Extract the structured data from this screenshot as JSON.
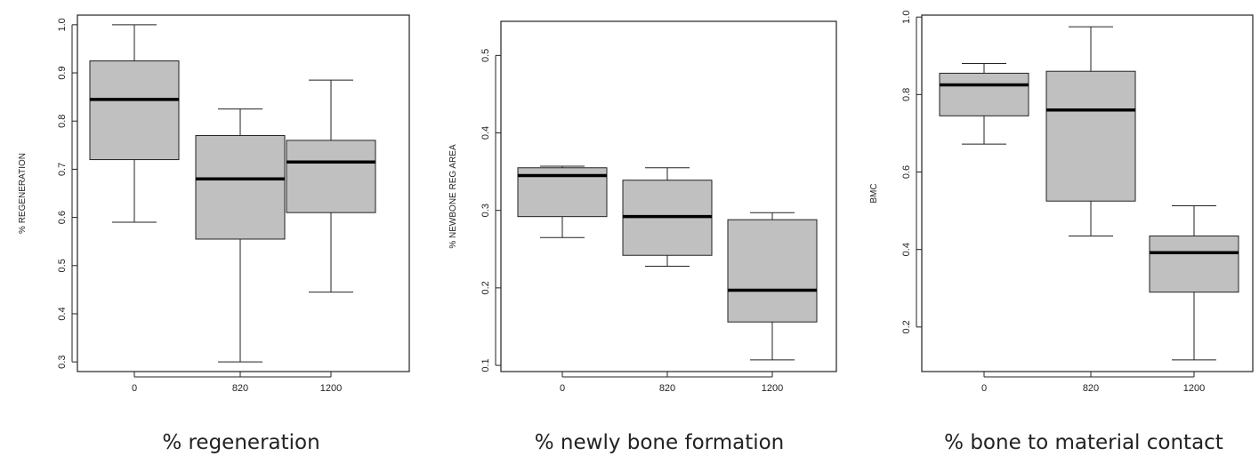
{
  "chart_data": [
    {
      "type": "boxplot",
      "caption": "% regeneration",
      "ylabel": "% REGENERATION",
      "categories": [
        "0",
        "820",
        "1200"
      ],
      "yticks": [
        "0.3",
        "0.4",
        "0.5",
        "0.6",
        "0.7",
        "0.8",
        "0.9",
        "1.0"
      ],
      "ylim": [
        0.28,
        1.02
      ],
      "boxes": [
        {
          "min": 0.59,
          "q1": 0.72,
          "median": 0.845,
          "q3": 0.925,
          "max": 1.0
        },
        {
          "min": 0.3,
          "q1": 0.555,
          "median": 0.68,
          "q3": 0.77,
          "max": 0.825
        },
        {
          "min": 0.445,
          "q1": 0.61,
          "median": 0.715,
          "q3": 0.76,
          "max": 0.885
        }
      ],
      "box_color": "#c0c0c0"
    },
    {
      "type": "boxplot",
      "caption": "% newly bone formation",
      "ylabel": "% NEWBONE REG AREA",
      "categories": [
        "0",
        "820",
        "1200"
      ],
      "yticks": [
        "0.1",
        "0.2",
        "0.3",
        "0.4",
        "0.5"
      ],
      "ylim": [
        0.092,
        0.544
      ],
      "boxes": [
        {
          "min": 0.265,
          "q1": 0.292,
          "median": 0.345,
          "q3": 0.355,
          "max": 0.357
        },
        {
          "min": 0.228,
          "q1": 0.242,
          "median": 0.292,
          "q3": 0.339,
          "max": 0.355
        },
        {
          "min": 0.107,
          "q1": 0.156,
          "median": 0.197,
          "q3": 0.288,
          "max": 0.297
        }
      ],
      "box_color": "#c0c0c0"
    },
    {
      "type": "boxplot",
      "caption": "% bone to material contact",
      "ylabel": "BMC",
      "categories": [
        "0",
        "820",
        "1200"
      ],
      "yticks": [
        "0.2",
        "0.4",
        "0.6",
        "0.8",
        "1.0"
      ],
      "ylim": [
        0.085,
        1.005
      ],
      "boxes": [
        {
          "min": 0.672,
          "q1": 0.745,
          "median": 0.825,
          "q3": 0.855,
          "max": 0.88
        },
        {
          "min": 0.435,
          "q1": 0.525,
          "median": 0.76,
          "q3": 0.86,
          "max": 0.975
        },
        {
          "min": 0.115,
          "q1": 0.29,
          "median": 0.392,
          "q3": 0.435,
          "max": 0.513
        }
      ],
      "box_color": "#c0c0c0"
    }
  ]
}
